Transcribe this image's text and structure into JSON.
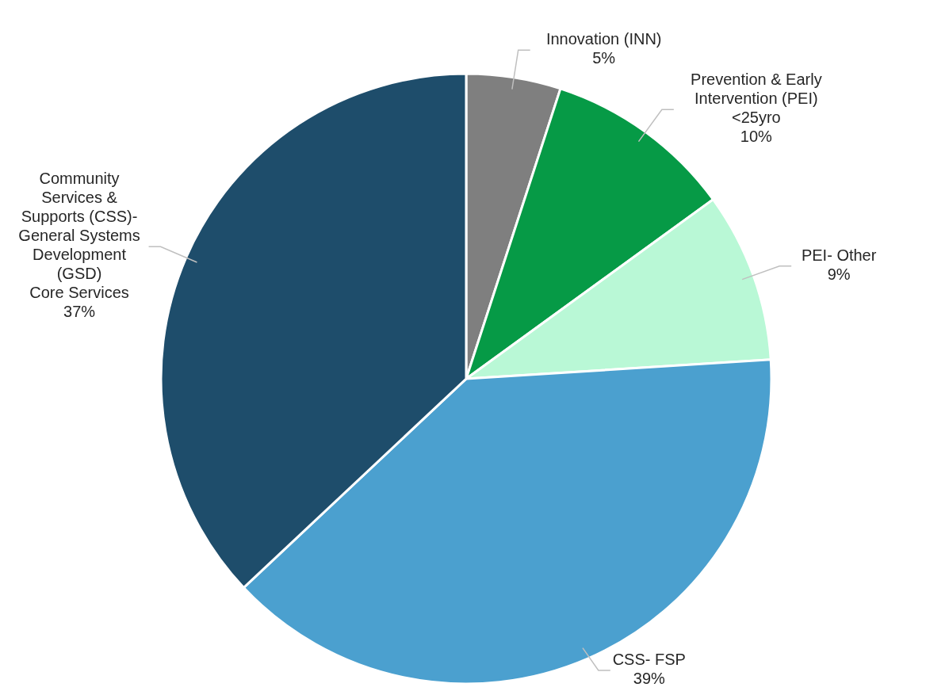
{
  "chart_data": {
    "type": "pie",
    "categories": [
      "Innovation (INN)",
      "Prevention & Early\nIntervention (PEI)\n<25yro",
      "PEI- Other",
      "CSS- FSP",
      "Community\nServices &\nSupports (CSS)-\nGeneral Systems\nDevelopment\n(GSD)\nCore Services"
    ],
    "values": [
      5,
      10,
      9,
      39,
      37
    ],
    "value_labels": [
      "5%",
      "10%",
      "9%",
      "39%",
      "37%"
    ],
    "colors": [
      "#7f7f7f",
      "#069a46",
      "#b9f8d6",
      "#4ba0cf",
      "#1e4d6b"
    ]
  }
}
